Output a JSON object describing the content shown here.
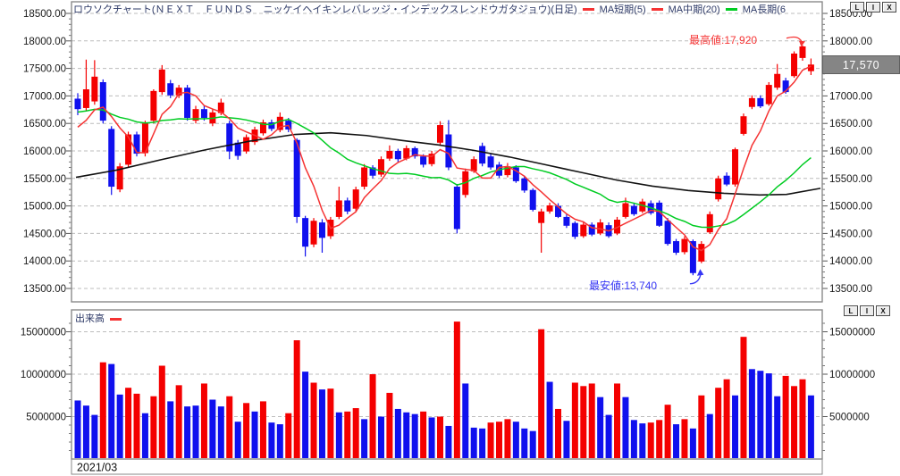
{
  "window": {
    "pane_buttons": [
      "L",
      "I",
      "X"
    ]
  },
  "price_panel": {
    "title": "ロウソクチャート(ＮＥＸＴ　ＦＵＮＤＳ　ニッケイヘイキンレバレッジ・インデックスレンドウガタジョウ)(日足)",
    "ma_legend": [
      {
        "label": "MA短期(5)",
        "dash_color": "#f53333"
      },
      {
        "label": "MA中期(20)",
        "dash_color": "#00cc22"
      },
      {
        "label": "MA長期(6",
        "dash_color": null
      }
    ],
    "y_ticks": [
      "18500.00",
      "18000.00",
      "17500.00",
      "17000.00",
      "16500.00",
      "16000.00",
      "15500.00",
      "15000.00",
      "14500.00",
      "14000.00",
      "13500.00"
    ],
    "current_price": "17,570",
    "high_annotation": "最高値:17,920",
    "low_annotation": "最安値:13,740"
  },
  "volume_panel": {
    "title": "出来高",
    "y_ticks": [
      "15000000",
      "10000000",
      "5000000"
    ],
    "x_label": "2021/03"
  },
  "colors": {
    "candle_up": "#f40000",
    "candle_down": "#1010ee",
    "ma_short": "#f53333",
    "ma_mid": "#00cc22",
    "ma_long": "#111111",
    "high_label": "#f53434",
    "low_label": "#3535f5",
    "grid": "#bcbcbc",
    "frame": "#8a8a8a",
    "badge_bg": "#858585"
  },
  "chart_data": [
    {
      "type": "candlestick",
      "title": "ロウソクチャート(ＮＥＸＴ ＦＵＮＤＳ ニッケイヘイキンレバレッジ・インデックスレンドウガタジョウ)(日足)",
      "ylim": [
        13500,
        18500
      ],
      "tick_step": 500,
      "up_color": "#f40000",
      "down_color": "#1010ee",
      "open": [
        16950,
        16780,
        16900,
        17250,
        16400,
        15300,
        15750,
        16300,
        15960,
        16550,
        17070,
        17230,
        17010,
        17150,
        16550,
        16760,
        16500,
        16690,
        16500,
        16150,
        15990,
        16160,
        16320,
        16520,
        16380,
        16550,
        16200,
        14780,
        14300,
        14700,
        14450,
        14800,
        15100,
        14950,
        15350,
        15700,
        15570,
        15860,
        16000,
        15860,
        16050,
        15900,
        15760,
        16150,
        16300,
        15350,
        15200,
        15630,
        16090,
        15900,
        15750,
        15560,
        15700,
        15500,
        15290,
        14690,
        14900,
        15000,
        14800,
        14690,
        14450,
        14660,
        14500,
        14650,
        14500,
        14800,
        15000,
        14900,
        15050,
        15060,
        14730,
        14360,
        14160,
        14360,
        13990,
        14520,
        15120,
        15550,
        15390,
        16310,
        16800,
        16960,
        16850,
        17150,
        17280,
        17360,
        17690,
        17450
      ],
      "high": [
        17050,
        17660,
        17650,
        17300,
        16450,
        15780,
        16350,
        16350,
        16550,
        17120,
        17560,
        17290,
        17200,
        17200,
        16820,
        16820,
        16760,
        16950,
        16550,
        16200,
        16300,
        16440,
        16570,
        16570,
        16700,
        16600,
        16230,
        14820,
        14780,
        14760,
        14800,
        15350,
        15150,
        15350,
        15760,
        15740,
        15900,
        16100,
        16040,
        16100,
        16080,
        15940,
        16000,
        16540,
        16560,
        15400,
        15680,
        15900,
        16150,
        15950,
        15800,
        15780,
        15740,
        15550,
        15320,
        14950,
        15060,
        15050,
        14850,
        14720,
        14710,
        14700,
        14760,
        14700,
        14800,
        15150,
        15060,
        15130,
        15100,
        15100,
        14780,
        14400,
        14450,
        14390,
        14360,
        14900,
        15550,
        15610,
        16060,
        16680,
        17010,
        17010,
        17250,
        17580,
        17330,
        17810,
        17920,
        17680
      ],
      "low": [
        16650,
        16720,
        16840,
        16500,
        15200,
        15250,
        15700,
        15900,
        15900,
        16500,
        17020,
        16960,
        16960,
        16550,
        16500,
        16550,
        16450,
        16650,
        15850,
        15840,
        15950,
        16110,
        16280,
        16360,
        16340,
        16340,
        14690,
        14080,
        14250,
        14150,
        14400,
        14760,
        14850,
        14900,
        15300,
        15500,
        15530,
        15820,
        15800,
        15830,
        15860,
        15700,
        15720,
        16100,
        15650,
        14500,
        15150,
        15600,
        15720,
        15660,
        15510,
        15520,
        15420,
        15240,
        14900,
        14150,
        14860,
        14780,
        14600,
        14400,
        14420,
        14450,
        14470,
        14420,
        14470,
        14770,
        14820,
        14870,
        14840,
        14620,
        14280,
        14110,
        14120,
        13740,
        13960,
        14490,
        15080,
        15360,
        15350,
        16280,
        16760,
        16780,
        16820,
        17110,
        17040,
        17330,
        17640,
        17380
      ],
      "close": [
        16760,
        17120,
        17350,
        16550,
        15350,
        15720,
        16300,
        15950,
        16500,
        17090,
        17480,
        17010,
        17150,
        16600,
        16760,
        16600,
        16700,
        16880,
        15990,
        15910,
        16250,
        16390,
        16520,
        16400,
        16620,
        16390,
        14800,
        14260,
        14730,
        14420,
        14750,
        15100,
        14900,
        15300,
        15700,
        15550,
        15850,
        16000,
        15850,
        16050,
        15900,
        15750,
        15950,
        16470,
        15700,
        14580,
        15630,
        15850,
        15770,
        15700,
        15550,
        15720,
        15450,
        15280,
        14930,
        14900,
        15010,
        14800,
        14640,
        14440,
        14660,
        14480,
        14700,
        14450,
        14750,
        15050,
        14850,
        15080,
        14870,
        14640,
        14310,
        14150,
        14400,
        13780,
        14310,
        14850,
        15500,
        15390,
        16030,
        16630,
        16960,
        16810,
        17200,
        17400,
        17070,
        17770,
        17900,
        17570
      ],
      "ma_lines": [
        {
          "name": "MA短期(5)",
          "period": 5,
          "color": "#f53333",
          "source": "sma"
        },
        {
          "name": "MA中期(20)",
          "period": 20,
          "color": "#00cc22",
          "source": "sma"
        },
        {
          "name": "MA長期",
          "color": "#111111",
          "source": "path",
          "path": [
            [
              85,
              15520
            ],
            [
              130,
              15650
            ],
            [
              180,
              15840
            ],
            [
              230,
              16020
            ],
            [
              280,
              16180
            ],
            [
              330,
              16300
            ],
            [
              370,
              16330
            ],
            [
              410,
              16280
            ],
            [
              450,
              16190
            ],
            [
              490,
              16110
            ],
            [
              530,
              16010
            ],
            [
              570,
              15890
            ],
            [
              610,
              15750
            ],
            [
              650,
              15610
            ],
            [
              690,
              15470
            ],
            [
              730,
              15360
            ],
            [
              770,
              15280
            ],
            [
              810,
              15230
            ],
            [
              850,
              15200
            ],
            [
              880,
              15210
            ],
            [
              918,
              15320
            ]
          ]
        }
      ],
      "ma_seed_closes": [
        16700,
        16750,
        16800,
        16850,
        16900,
        16950,
        16950,
        16900,
        16850,
        16800,
        16800,
        16750,
        16700,
        16650,
        16600,
        16500,
        16400,
        16300,
        16200
      ],
      "max_label": {
        "text": "最高値:17,920",
        "value": 17920,
        "index": 86
      },
      "min_label": {
        "text": "最安値:13,740",
        "value": 13740,
        "index": 73
      },
      "last_price": {
        "text": "17,570",
        "value": 17570
      }
    },
    {
      "type": "bar",
      "name": "出来高",
      "unit": 1000000,
      "ylim": [
        0,
        17600000
      ],
      "y_ticks": [
        5000000,
        10000000,
        15000000
      ],
      "x_start_label": "2021/03",
      "up_color": "#f40000",
      "down_color": "#1010ee",
      "values": [
        6.9,
        6.3,
        5.2,
        11.4,
        11.2,
        7.6,
        8.4,
        7.7,
        5.4,
        7.4,
        11.0,
        6.8,
        8.7,
        6.2,
        6.3,
        8.9,
        7.0,
        6.2,
        7.4,
        4.4,
        6.6,
        5.6,
        6.8,
        4.3,
        4.1,
        5.4,
        14.0,
        10.3,
        9.0,
        8.2,
        8.3,
        5.5,
        5.6,
        6.0,
        4.7,
        10.0,
        5.0,
        7.8,
        5.9,
        5.5,
        5.3,
        5.6,
        4.9,
        5.0,
        3.9,
        16.2,
        8.9,
        3.7,
        3.6,
        4.3,
        4.4,
        4.7,
        4.4,
        3.6,
        3.3,
        15.3,
        9.1,
        5.9,
        4.5,
        9.0,
        8.6,
        8.9,
        7.3,
        5.2,
        8.9,
        7.3,
        4.6,
        4.2,
        4.3,
        4.6,
        6.4,
        4.1,
        4.7,
        3.6,
        7.5,
        5.3,
        8.4,
        9.4,
        7.5,
        14.4,
        10.6,
        10.4,
        10.1,
        7.4,
        9.8,
        8.6,
        9.4,
        7.5
      ],
      "colors": "bbbrbbrrbrrbrbbrbbrbrbrbbrrbrbrbrrbrbrbbbrbrbrbbbrrrbbbrbrbrrrbbrbbbrrrbrbrbrrbrbbbbrrrb"
    }
  ]
}
